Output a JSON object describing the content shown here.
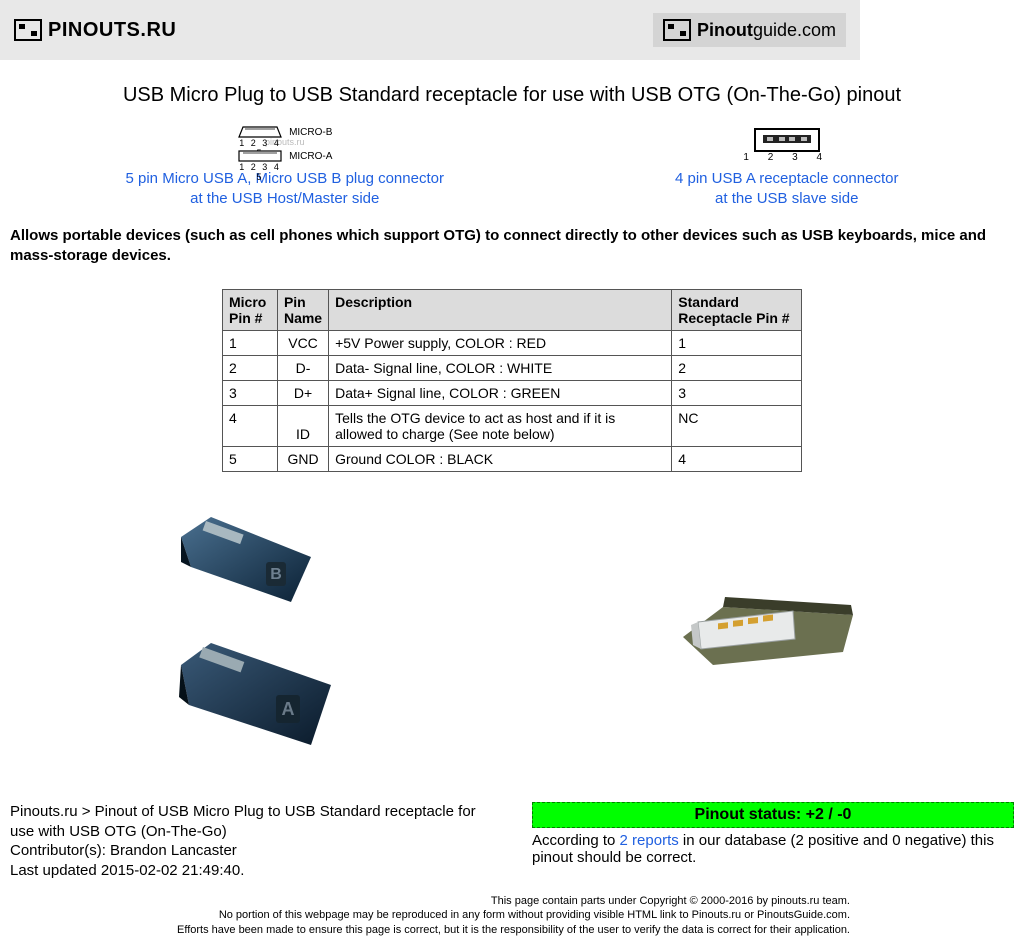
{
  "header": {
    "logo_left_text": "PINOUTS.RU",
    "logo_right_text_1": "Pinout",
    "logo_right_text_2": "guide.com"
  },
  "page_title": "USB Micro Plug to USB Standard receptacle for use with USB OTG (On-The-Go) pinout",
  "connectors": {
    "left": {
      "micro_b_label": "MICRO-B",
      "micro_a_label": "MICRO-A",
      "pin_numbers": "1 2 3 4 5",
      "watermark": "pinouts.ru",
      "link_line1": "5 pin Micro USB A, Micro USB B plug connector",
      "link_line2": "at the USB Host/Master side"
    },
    "right": {
      "pin_numbers": "1 2 3 4",
      "link_line1": "4 pin USB A receptacle connector",
      "link_line2": "at the USB slave side"
    }
  },
  "intro_text": "Allows portable devices (such as cell phones which support OTG) to connect directly to other devices such as USB keyboards, mice and mass-storage devices.",
  "table": {
    "columns": [
      "Micro Pin #",
      "Pin Name",
      "Description",
      "Standard Receptacle Pin #"
    ],
    "rows": [
      {
        "pin": "1",
        "name": "VCC",
        "desc": "+5V Power supply, COLOR : RED",
        "std": "1"
      },
      {
        "pin": "2",
        "name": "D-",
        "desc": "Data- Signal line, COLOR : WHITE",
        "std": "2"
      },
      {
        "pin": "3",
        "name": "D+",
        "desc": "Data+ Signal line, COLOR : GREEN",
        "std": "3"
      },
      {
        "pin": "4",
        "name": "ID",
        "desc": "Tells the OTG device to act as host and if it is allowed to charge (See note below)",
        "std": "NC"
      },
      {
        "pin": "5",
        "name": "GND",
        "desc": " Ground COLOR : BLACK",
        "std": "4"
      }
    ],
    "col_widths": [
      "55px",
      "50px",
      "340px",
      "130px"
    ],
    "header_bg": "#dcdcdc",
    "border_color": "#555555"
  },
  "footer": {
    "breadcrumb": "Pinouts.ru > Pinout of USB Micro Plug to USB Standard receptacle for use with USB OTG (On-The-Go)",
    "contributor": "Contributor(s): Brandon Lancaster",
    "last_updated": "Last updated 2015-02-02 21:49:40.",
    "status_label": "Pinout status: +2 / -0",
    "status_bg": "#00ff00",
    "reports_prefix": "According to ",
    "reports_link": "2 reports",
    "reports_suffix": " in our database (2 positive and 0 negative) this pinout should be correct."
  },
  "copyright": {
    "line1": "This page contain parts under Copyright © 2000-2016 by pinouts.ru team.",
    "line2": "No portion of this webpage may be reproduced in any form without providing visible HTML link to Pinouts.ru or PinoutsGuide.com.",
    "line3": "Efforts have been made to ensure this page is correct, but it is the responsibility of the user to verify the data is correct for their application."
  },
  "colors": {
    "link": "#2060e0",
    "header_bg": "#e8e8e8"
  }
}
